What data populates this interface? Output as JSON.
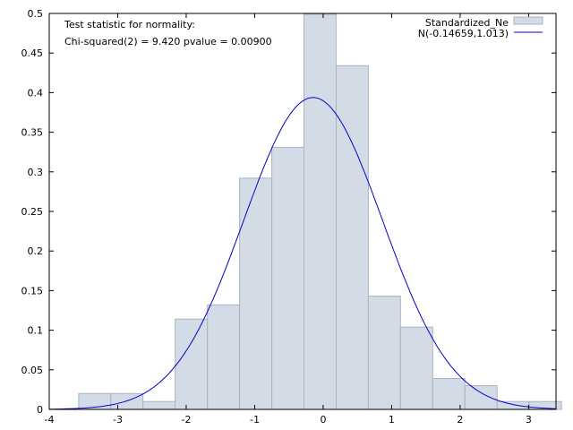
{
  "chart_data": {
    "type": "bar",
    "annotation": {
      "line1": "Test statistic for normality:",
      "line2": "Chi-squared(2) = 9.420 pvalue = 0.00900"
    },
    "legend": {
      "placement": "top-right",
      "histogram_label": "Standardized_Ne",
      "curve_label": "N(-0.14659,1.013)"
    },
    "xlim": [
      -4,
      3.4
    ],
    "ylim": [
      0,
      0.5
    ],
    "xticks": [
      -4,
      -3,
      -2,
      -1,
      0,
      1,
      2,
      3
    ],
    "yticks": [
      0,
      0.05,
      0.1,
      0.15,
      0.2,
      0.25,
      0.3,
      0.35,
      0.4,
      0.45,
      0.5
    ],
    "bin_width": 0.47,
    "bins": [
      {
        "left": -3.57,
        "density": 0.02
      },
      {
        "left": -3.1,
        "density": 0.02
      },
      {
        "left": -2.63,
        "density": 0.01
      },
      {
        "left": -2.16,
        "density": 0.114
      },
      {
        "left": -1.69,
        "density": 0.132
      },
      {
        "left": -1.22,
        "density": 0.292
      },
      {
        "left": -0.75,
        "density": 0.331
      },
      {
        "left": -0.28,
        "density": 0.499
      },
      {
        "left": 0.19,
        "density": 0.434
      },
      {
        "left": 0.66,
        "density": 0.143
      },
      {
        "left": 1.13,
        "density": 0.104
      },
      {
        "left": 1.6,
        "density": 0.039
      },
      {
        "left": 2.07,
        "density": 0.03
      },
      {
        "left": 2.54,
        "density": 0.01
      },
      {
        "left": 3.01,
        "density": 0.01
      }
    ],
    "normal_fit": {
      "mean": -0.14659,
      "sd": 1.013
    },
    "colors": {
      "bar_fill": "#d3dce6",
      "bar_stroke": "#a9b4c1",
      "curve": "#0000cc",
      "frame": "#000000"
    }
  }
}
